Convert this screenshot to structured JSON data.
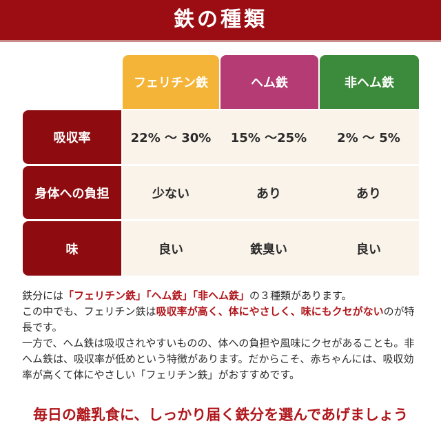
{
  "title": "鉄の種類",
  "table": {
    "columns": [
      "フェリチン鉄",
      "ヘム鉄",
      "非ヘム鉄"
    ],
    "column_colors": [
      "#f4b437",
      "#b43b74",
      "#3c8a3b"
    ],
    "rows": [
      {
        "label": "吸収率",
        "cells": [
          "22% 〜 30%",
          "15% 〜25%",
          "2% 〜 5%"
        ]
      },
      {
        "label": "身体への負担",
        "cells": [
          "少ない",
          "あり",
          "あり"
        ]
      },
      {
        "label": "味",
        "cells": [
          "良い",
          "鉄臭い",
          "良い"
        ]
      }
    ]
  },
  "paragraphs": [
    [
      {
        "text": "鉄分には"
      },
      {
        "text": "「フェリチン鉄」「ヘム鉄」「非ヘム鉄」",
        "emphasis": true
      },
      {
        "text": "の３種類があります。"
      }
    ],
    [
      {
        "text": "この中でも、フェリチン鉄は"
      },
      {
        "text": "吸収率が高く、体にやさしく、味にもクセがない",
        "emphasis": true
      },
      {
        "text": "のが特長です。"
      }
    ],
    [
      {
        "text": "一方で、ヘム鉄は吸収されやすいものの、体への負担や風味にクセがあることも。非ヘム鉄は、吸収率が低めという特徴があります。だからこそ、赤ちゃんには、吸収効率が高くて体にやさしい「フェリチン鉄」がおすすめです。"
      }
    ]
  ],
  "closing": "毎日の離乳食に、しっかり届く鉄分を選んであげましょう"
}
